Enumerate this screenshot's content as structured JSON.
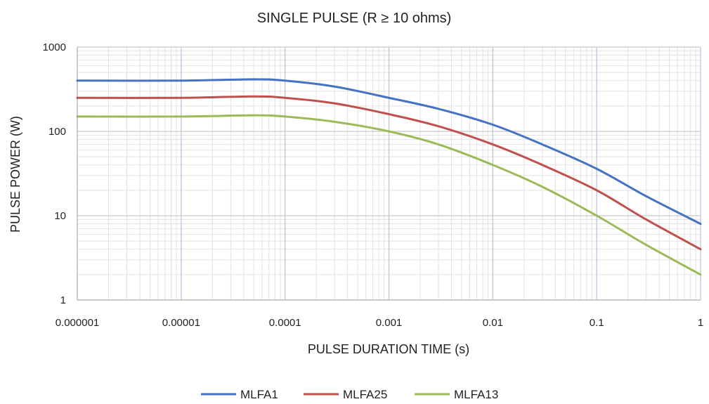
{
  "chart_data": {
    "type": "line",
    "title": "SINGLE PULSE (R ≥ 10 ohms)",
    "xlabel": "PULSE DURATION TIME (s)",
    "ylabel": "PULSE POWER (W)",
    "x_scale": "log",
    "y_scale": "log",
    "xlim": [
      1e-06,
      1
    ],
    "ylim": [
      1,
      1000
    ],
    "x_tick_labels": [
      "0.000001",
      "0.00001",
      "0.0001",
      "0.001",
      "0.01",
      "0.1",
      "1"
    ],
    "y_tick_labels": [
      "1",
      "10",
      "100",
      "1000"
    ],
    "grid": true,
    "legend_position": "bottom",
    "series": [
      {
        "name": "MLFA1",
        "color": "#4472C4",
        "x": [
          1e-06,
          1e-05,
          5e-05,
          0.0001,
          0.0003,
          0.001,
          0.003,
          0.01,
          0.03,
          0.1,
          0.3,
          1
        ],
        "y": [
          400,
          400,
          415,
          400,
          340,
          250,
          185,
          120,
          70,
          36,
          17,
          8
        ]
      },
      {
        "name": "MLFA25",
        "color": "#C0504D",
        "x": [
          1e-06,
          1e-05,
          5e-05,
          0.0001,
          0.0003,
          0.001,
          0.003,
          0.01,
          0.03,
          0.1,
          0.3,
          1
        ],
        "y": [
          250,
          250,
          260,
          250,
          215,
          160,
          115,
          70,
          40,
          20,
          9,
          4
        ]
      },
      {
        "name": "MLFA13",
        "color": "#9BBB59",
        "x": [
          1e-06,
          1e-05,
          5e-05,
          0.0001,
          0.0003,
          0.001,
          0.003,
          0.01,
          0.03,
          0.1,
          0.3,
          1
        ],
        "y": [
          150,
          150,
          155,
          150,
          130,
          100,
          70,
          40,
          22,
          10,
          4.5,
          2
        ]
      }
    ]
  }
}
